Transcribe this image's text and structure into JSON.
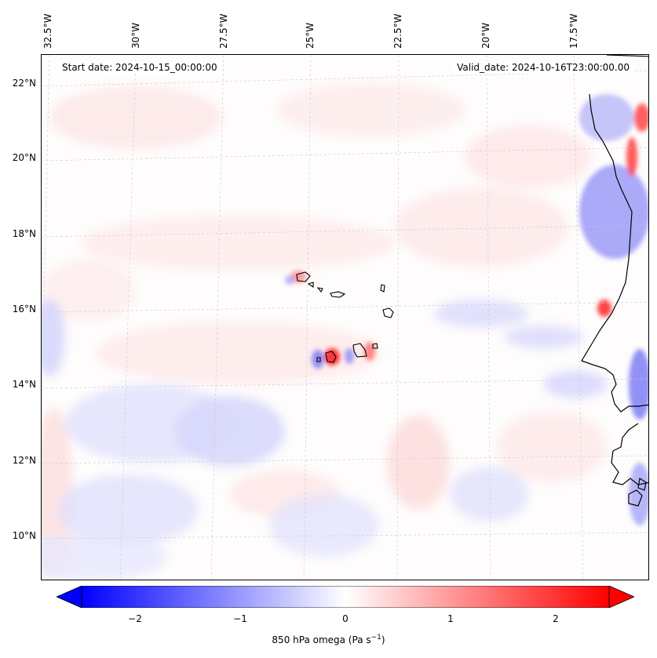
{
  "map": {
    "start_date": "Start date: 2024-10-15_00:00:00",
    "valid_date": "Valid_date: 2024-10-16T23:00:00.00",
    "lon_labels": [
      "32.5°W",
      "30°W",
      "27.5°W",
      "25°W",
      "22.5°W",
      "20°W",
      "17.5°W"
    ],
    "lat_labels": [
      "22°N",
      "20°N",
      "18°N",
      "16°N",
      "14°N",
      "12°N",
      "10°N"
    ],
    "extent": {
      "lon_min": -32.9,
      "lon_max": -15.5,
      "lat_min": 8.9,
      "lat_max": 22.7
    }
  },
  "colorbar": {
    "label": "850 hPa omega (Pa s",
    "label_sup": "−1",
    "label_close": ")",
    "ticks": [
      "−2",
      "−1",
      "0",
      "1",
      "2"
    ],
    "range": [
      -2.5,
      2.5
    ],
    "colormap": "bwr",
    "extend": "both",
    "colors": {
      "negative": "#0000ff",
      "zero": "#ffffff",
      "positive": "#ff0000"
    }
  }
}
